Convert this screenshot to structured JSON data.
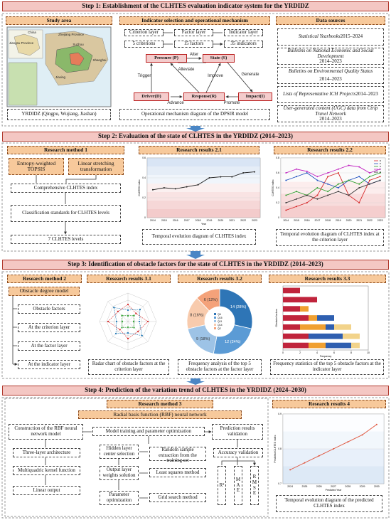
{
  "step1": {
    "title": "Step 1: Establishment of the CLHTES evaluation indicator system for the YRDIDZ",
    "study_area": {
      "heading": "Study area",
      "map_labels": [
        "China",
        "Suzhou",
        "Shanghai",
        "Jiaxing",
        "Jiangsu Province",
        "Zhejiang Province"
      ],
      "caption": "YRDIDZ (Qingpu, Wujiang, Jiashan)"
    },
    "indicators": {
      "heading": "Indicator selection and operational mechanism",
      "layers": [
        "Criterion layer",
        "Factor layer",
        "Indicator layer"
      ],
      "counts": [
        "5 criterions",
        "15 factors",
        "35 indicators"
      ],
      "dpsir": {
        "nodes": [
          "Pressure (P)",
          "State (S)",
          "Driver(D)",
          "Response(R)",
          "Impact(I)"
        ],
        "edges": [
          "Alter",
          "Alleviate",
          "Trigger",
          "Improve",
          "Generate",
          "Advance",
          "Promote"
        ]
      },
      "caption": "Operational mechanism diagram of the DPSIR model"
    },
    "data_sources": {
      "heading": "Data sources",
      "items": [
        {
          "name": "Statistical Yearbooks",
          "years": "2015–2024"
        },
        {
          "name": "Bulletins on National Economic and Social Development",
          "years": "2014–2023"
        },
        {
          "name": "Bulletins on Environmental Quality Status",
          "years": "2014–2023"
        },
        {
          "name": "Lists of Representative ICH Projects",
          "years": "2014–2023"
        },
        {
          "name": "User-generated content (UGC) data from Ctrip Travel Network",
          "years": "2014–2023"
        }
      ]
    }
  },
  "step2": {
    "title": "Step 2: Evaluation of the state of CLHTES in the YRDIDZ (2014–2023)",
    "method": {
      "heading": "Research method 1",
      "tools": [
        "Entropy-weighted TOPSIS",
        "Linear stretching transformation"
      ],
      "steps": [
        "Comprehensive CLHTES index",
        "Classification standards for CLHTES levels",
        "7 CLHTES levels"
      ]
    },
    "results": [
      {
        "heading": "Research results 2.1",
        "caption": "Temporal evolution diagram of CLHTES index"
      },
      {
        "heading": "Research results 2.2",
        "caption": "Temporal evolution diagram of CLHTES index at the criterion layer"
      }
    ]
  },
  "step3": {
    "title": "Step 3: Identification of obstacle factors for the state of CLHTES in the YRDIDZ (2014–2023)",
    "method": {
      "heading": "Research method 2",
      "model": "Obstacle degree model",
      "steps": [
        "Obstacle factors",
        "At the criterion layer",
        "At the factor layer",
        "At the indicator layer"
      ]
    },
    "results": [
      {
        "heading": "Research results 3.1",
        "caption": "Radar chart of obstacle factors at the criterion layer"
      },
      {
        "heading": "Research results 3.2",
        "caption": "Frequency analysis of the top 5 obstacle factors at the factor layer"
      },
      {
        "heading": "Research results 3.3",
        "caption": "Frequency statistics of the top 5 obstacle factors at the indicator layer"
      }
    ]
  },
  "step4": {
    "title": "Step 4: Prediction of the variation trend of CLHTES in the YRDIDZ (2024–2030)",
    "method": {
      "heading": "Research method 3",
      "model": "Radial basis function (RBF) neural network",
      "construction": [
        "Construction of the RBF neural network model",
        "Three-layer architecture",
        "Multiquadric kernel function",
        "Linear output"
      ],
      "training": {
        "heading": "Model training and parameter optimization",
        "rows": [
          [
            "Hidden layer center selection",
            "Random sample extraction from the training set"
          ],
          [
            "Output layer weights solution",
            "Least squares method"
          ],
          [
            "Parameter optimization",
            "Grid search method"
          ]
        ]
      },
      "validation": {
        "heading": "Prediction results validation",
        "accuracy": "Accuracy validation",
        "metrics": [
          "R²",
          "MAE",
          "RMSE"
        ]
      }
    },
    "results": {
      "heading": "Research results 4",
      "caption": "Temporal evolution diagram of the predicted CLHTES index"
    }
  },
  "chart_data": [
    {
      "type": "line",
      "x_label": "Year",
      "y_label": "CLHTES index",
      "categories": [
        "2014",
        "2015",
        "2016",
        "2017",
        "2018",
        "2019",
        "2020",
        "2021",
        "2022",
        "2023"
      ],
      "values": [
        0.28,
        0.3,
        0.29,
        0.31,
        0.33,
        0.4,
        0.41,
        0.41,
        0.45,
        0.46
      ],
      "color": "#222",
      "ylim": [
        0,
        0.6
      ],
      "yticks": [
        0,
        0.2,
        0.4,
        0.6
      ]
    },
    {
      "type": "line",
      "y_label": "CLHTES index",
      "categories": [
        "2014",
        "2015",
        "2016",
        "2017",
        "2018",
        "2019",
        "2020",
        "2021",
        "2022",
        "2023"
      ],
      "series": [
        {
          "name": "D",
          "color": "#d62728",
          "values": [
            0.1,
            0.15,
            0.2,
            0.3,
            0.55,
            0.6,
            0.3,
            0.2,
            0.5,
            0.55
          ]
        },
        {
          "name": "P",
          "color": "#1f4fbf",
          "values": [
            0.5,
            0.55,
            0.6,
            0.5,
            0.45,
            0.4,
            0.5,
            0.55,
            0.45,
            0.5
          ]
        },
        {
          "name": "S",
          "color": "#2ca02c",
          "values": [
            0.3,
            0.35,
            0.3,
            0.4,
            0.35,
            0.45,
            0.5,
            0.45,
            0.55,
            0.6
          ]
        },
        {
          "name": "I",
          "color": "#c020c0",
          "values": [
            0.6,
            0.65,
            0.62,
            0.55,
            0.6,
            0.65,
            0.7,
            0.68,
            0.6,
            0.65
          ]
        },
        {
          "name": "R",
          "color": "#333333",
          "values": [
            0.2,
            0.25,
            0.3,
            0.25,
            0.3,
            0.35,
            0.3,
            0.4,
            0.45,
            0.5
          ]
        }
      ],
      "ylim": [
        0,
        0.8
      ],
      "yticks": [
        0,
        0.2,
        0.4,
        0.6,
        0.8
      ]
    },
    {
      "type": "radar",
      "categories": [
        null,
        null,
        null,
        null,
        null,
        null,
        null,
        null
      ],
      "ylim": [
        0,
        0.5
      ],
      "series": [
        {
          "color": "#d62728",
          "values": [
            0.3,
            0.2,
            0.35,
            0.25,
            0.3,
            0.2,
            0.35,
            0.25
          ]
        },
        {
          "color": "#1f77b4",
          "values": [
            0.2,
            0.3,
            0.2,
            0.35,
            0.2,
            0.3,
            0.2,
            0.35
          ]
        },
        {
          "color": "#2ca02c",
          "values": [
            0.1,
            0.15,
            0.1,
            0.15,
            0.1,
            0.15,
            0.1,
            0.15
          ]
        }
      ]
    },
    {
      "type": "pie",
      "categories": [
        "Q6",
        "Q15",
        "Q11",
        "Q14",
        "Q2"
      ],
      "values": [
        14,
        12,
        9,
        8,
        6
      ],
      "value_labels": [
        "14 (28%)",
        "12 (24%)",
        "9 (18%)",
        "8 (16%)",
        "6 (12%)"
      ],
      "colors": [
        "#2e75b6",
        "#5b9bd5",
        "#9dc3e6",
        "#f8cbad",
        "#f4a27a"
      ]
    },
    {
      "type": "hbar-stacked",
      "x_label": "Frequency",
      "y_label": "Obstacle factors",
      "categories": [
        null,
        null,
        null,
        null,
        null,
        null,
        null
      ],
      "xlim": [
        0,
        10
      ],
      "xticks": [
        0,
        2,
        4,
        6,
        8,
        10
      ],
      "series": [
        {
          "color": "#c0243c",
          "values": [
            2,
            4,
            2,
            3,
            2,
            3,
            3
          ]
        },
        {
          "color": "#f0a030",
          "values": [
            0,
            0,
            1,
            1,
            3,
            0,
            2
          ]
        },
        {
          "color": "#2f5fb0",
          "values": [
            0,
            0,
            0,
            2,
            1,
            4,
            3
          ]
        },
        {
          "color": "#f2d38a",
          "values": [
            0,
            0,
            0,
            0,
            2,
            2,
            1
          ]
        }
      ]
    },
    {
      "type": "line",
      "x_label": "Predicted Year",
      "y_label": "Predicted CLHTES index",
      "categories": [
        "2024",
        "2025",
        "2026",
        "2027",
        "2028",
        "2029",
        "2030"
      ],
      "values": [
        0.74,
        0.76,
        0.78,
        0.8,
        0.82,
        0.84,
        0.87
      ],
      "color": "#e0533a",
      "ylim": [
        0.7,
        0.9
      ],
      "yticks": [
        0.7,
        0.8,
        0.9
      ]
    }
  ]
}
